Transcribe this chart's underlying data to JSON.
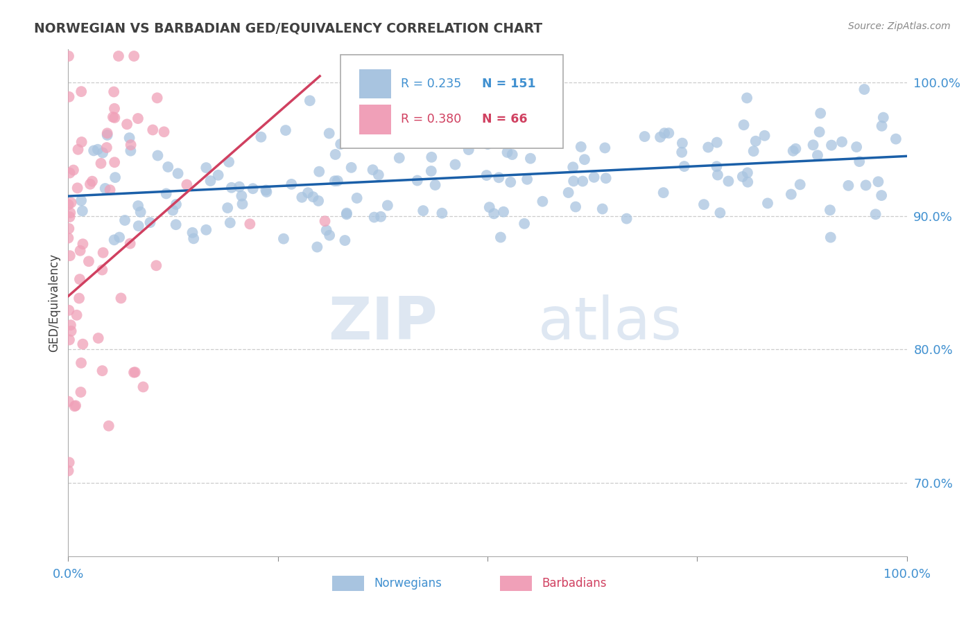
{
  "title": "NORWEGIAN VS BARBADIAN GED/EQUIVALENCY CORRELATION CHART",
  "source_text": "Source: ZipAtlas.com",
  "ylabel": "GED/Equivalency",
  "watermark_part1": "ZIP",
  "watermark_part2": "atlas",
  "legend_blue_r": "R = 0.235",
  "legend_blue_n": "N = 151",
  "legend_pink_r": "R = 0.380",
  "legend_pink_n": "N = 66",
  "right_ytick_positions": [
    0.7,
    0.8,
    0.9,
    1.0
  ],
  "right_ytick_labels": [
    "70.0%",
    "80.0%",
    "90.0%",
    "100.0%"
  ],
  "blue_color": "#a8c4e0",
  "pink_color": "#f0a0b8",
  "blue_line_color": "#1a5fa8",
  "pink_line_color": "#d04060",
  "blue_text_color": "#4090d0",
  "pink_text_color": "#d04060",
  "background_color": "#ffffff",
  "grid_color": "#cccccc",
  "title_color": "#404040",
  "blue_trend_x": [
    0.0,
    1.0
  ],
  "blue_trend_y": [
    0.915,
    0.945
  ],
  "pink_trend_x": [
    0.0,
    0.3
  ],
  "pink_trend_y": [
    0.84,
    1.005
  ],
  "xlim": [
    0.0,
    1.0
  ],
  "ylim": [
    0.645,
    1.025
  ],
  "seed_blue": 42,
  "seed_pink": 99,
  "n_blue": 151,
  "n_pink": 66
}
